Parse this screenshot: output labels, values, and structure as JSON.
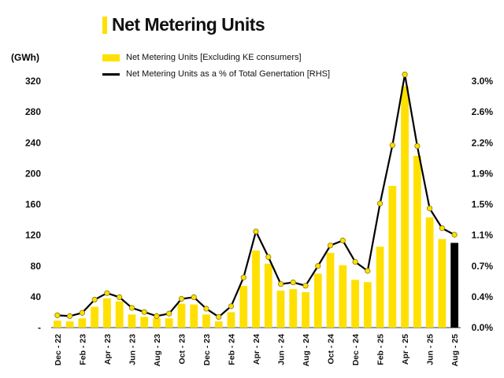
{
  "chart_data": {
    "type": "bar+line",
    "title": "Net Metering Units",
    "ylabel": "(GWh)",
    "ylim": [
      0,
      320
    ],
    "yticks": [
      "-",
      "40",
      "80",
      "120",
      "160",
      "200",
      "240",
      "280",
      "320"
    ],
    "y2lim": [
      0,
      3.0
    ],
    "y2ticks": [
      "0.0%",
      "0.4%",
      "0.7%",
      "1.1%",
      "1.5%",
      "1.9%",
      "2.2%",
      "2.6%",
      "3.0%"
    ],
    "categories": [
      "Dec - 22",
      "Jan - 23",
      "Feb - 23",
      "Mar - 23",
      "Apr - 23",
      "May - 23",
      "Jun - 23",
      "Jul - 23",
      "Aug - 23",
      "Sep - 23",
      "Oct - 23",
      "Nov - 23",
      "Dec - 23",
      "Jan - 24",
      "Feb - 24",
      "Mar - 24",
      "Apr - 24",
      "May - 24",
      "Jun - 24",
      "Jul - 24",
      "Aug - 24",
      "Sep - 24",
      "Oct - 24",
      "Nov - 24",
      "Dec - 24",
      "Jan - 25",
      "Feb - 25",
      "Mar - 25",
      "Apr - 25",
      "May - 25",
      "Jun - 25",
      "Jul - 25",
      "Aug - 25"
    ],
    "shown_tick_every": 2,
    "series": [
      {
        "name": "Net Metering Units [Excluding KE consumers]",
        "type": "bar",
        "color": "#ffe000",
        "last_color": "#000000",
        "values": [
          9,
          8,
          12,
          27,
          38,
          34,
          17,
          14,
          12,
          12,
          31,
          30,
          17,
          8,
          20,
          54,
          100,
          83,
          48,
          50,
          46,
          70,
          97,
          81,
          62,
          59,
          105,
          184,
          313,
          223,
          143,
          115,
          110
        ]
      },
      {
        "name": "Net Metering Units as a % of Total Genertation [RHS]",
        "type": "line",
        "axis": "right",
        "color": "#000000",
        "marker_color": "#ffe000",
        "values": [
          0.15,
          0.14,
          0.18,
          0.34,
          0.42,
          0.37,
          0.24,
          0.19,
          0.14,
          0.17,
          0.35,
          0.37,
          0.23,
          0.13,
          0.26,
          0.61,
          1.17,
          0.86,
          0.53,
          0.55,
          0.51,
          0.75,
          1.0,
          1.06,
          0.8,
          0.69,
          1.51,
          2.22,
          3.08,
          2.21,
          1.45,
          1.21,
          1.13
        ]
      }
    ],
    "legend": "top-left",
    "grid": false
  }
}
